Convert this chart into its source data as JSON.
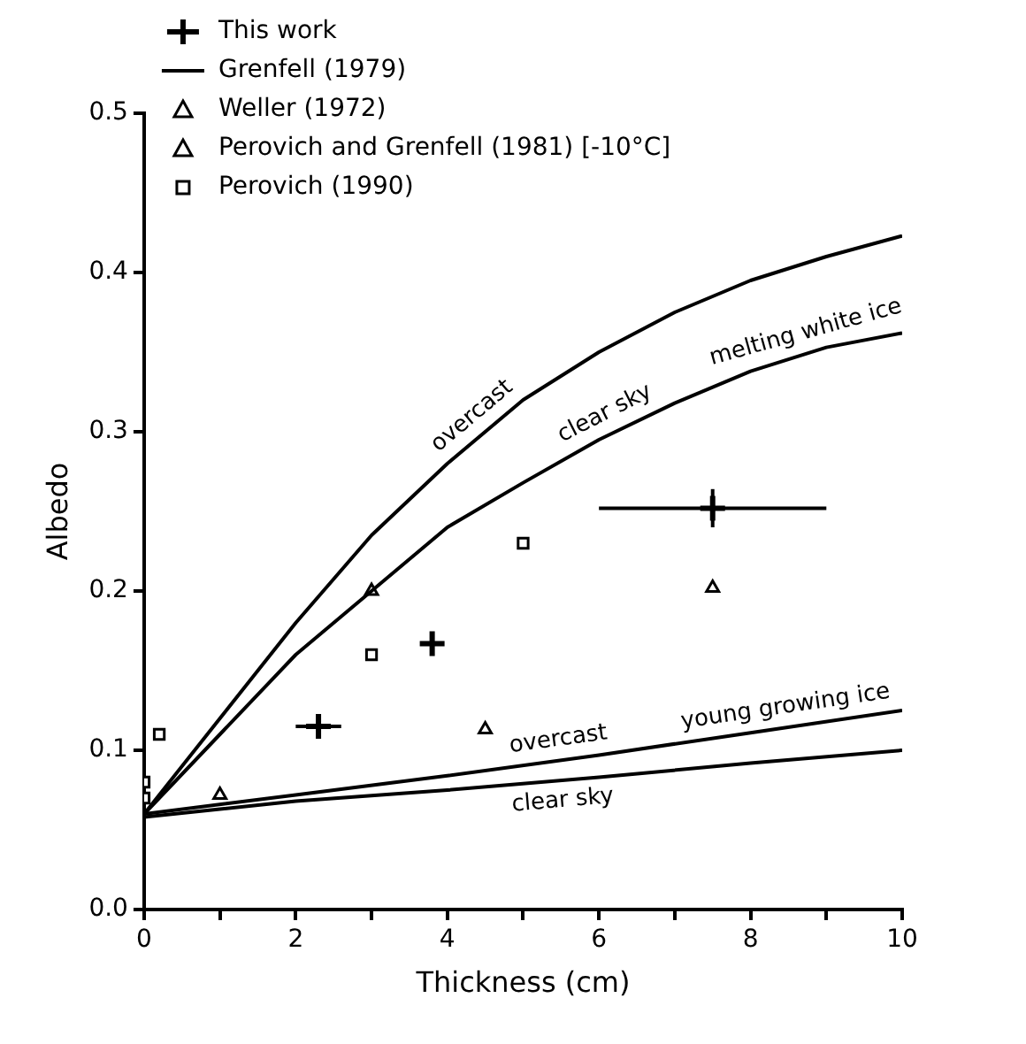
{
  "chart_data": {
    "type": "scatter",
    "xlabel": "Thickness (cm)",
    "ylabel": "Albedo",
    "xlim": [
      0,
      10
    ],
    "xticks": [
      0,
      {
        "value": 1,
        "label": null
      },
      2,
      {
        "value": 3,
        "label": null
      },
      4,
      {
        "value": 5,
        "label": null
      },
      6,
      {
        "value": 7,
        "label": null
      },
      8,
      {
        "value": 9,
        "label": null
      },
      10
    ],
    "ylim": [
      0,
      0.5
    ],
    "yticks": [
      {
        "value": 0,
        "label": "0.0"
      },
      0.1,
      0.2,
      0.3,
      0.4,
      0.5
    ],
    "grid": false,
    "legend": "top left",
    "series": [
      {
        "name": "This work",
        "type": "scatter",
        "marker": "cross",
        "color": "#000000",
        "x": [
          2.3,
          3.8,
          7.5
        ],
        "values": [
          0.115,
          0.167,
          0.252
        ],
        "xerrors": [
          0.3,
          null,
          1.5
        ],
        "errors": [
          null,
          null,
          0.012
        ]
      },
      {
        "name": "Grenfell (1979)",
        "type": "line",
        "color": "#000000",
        "x": [
          0,
          1,
          2,
          3,
          4,
          5,
          6,
          7,
          8,
          9,
          10
        ],
        "values": [
          0.06,
          0.12,
          0.18,
          0.235,
          0.28,
          0.32,
          0.35,
          0.375,
          0.395,
          0.41,
          0.423
        ]
      },
      {
        "type": "line",
        "color": "#000000",
        "x": [
          0,
          1,
          2,
          3,
          4,
          5,
          6,
          7,
          8,
          9,
          10
        ],
        "values": [
          0.06,
          0.11,
          0.16,
          0.2,
          0.24,
          0.268,
          0.295,
          0.318,
          0.338,
          0.353,
          0.362
        ]
      },
      {
        "type": "line",
        "color": "#000000",
        "x": [
          0,
          2,
          4,
          6,
          8,
          10
        ],
        "values": [
          0.06,
          0.072,
          0.084,
          0.097,
          0.111,
          0.125
        ]
      },
      {
        "type": "line",
        "color": "#000000",
        "x": [
          0,
          1,
          2,
          4,
          6,
          8,
          10
        ],
        "values": [
          0.058,
          0.063,
          0.068,
          0.075,
          0.083,
          0.092,
          0.1
        ]
      },
      {
        "name": "Weller (1972)",
        "type": "scatter",
        "marker": "triangle",
        "color": "#000000",
        "x": [
          1,
          3
        ],
        "values": [
          0.072,
          0.2
        ]
      },
      {
        "name": "Perovich and Grenfell (1981) [-10°C]",
        "type": "scatter",
        "marker": "triangle",
        "color": "#000000",
        "x": [
          4.5,
          7.5
        ],
        "values": [
          0.113,
          0.202
        ]
      },
      {
        "name": "Perovich (1990)",
        "type": "scatter",
        "marker": "square",
        "color": "#000000",
        "x": [
          0,
          0,
          0.2,
          3,
          5
        ],
        "values": [
          0.07,
          0.08,
          0.11,
          0.16,
          0.23
        ]
      }
    ],
    "annotations": [
      {
        "text": "overcast",
        "x": 4.5,
        "y": 0.3
      },
      {
        "text": "clear sky",
        "x": 6.2,
        "y": 0.3
      },
      {
        "text": "melting white ice",
        "x": 8.8,
        "y": 0.35
      },
      {
        "text": "overcast",
        "x": 5.5,
        "y": 0.094
      },
      {
        "text": "young growing ice",
        "x": 8.5,
        "y": 0.1145
      },
      {
        "text": "clear sky",
        "x": 5.5,
        "y": 0.081
      }
    ]
  }
}
